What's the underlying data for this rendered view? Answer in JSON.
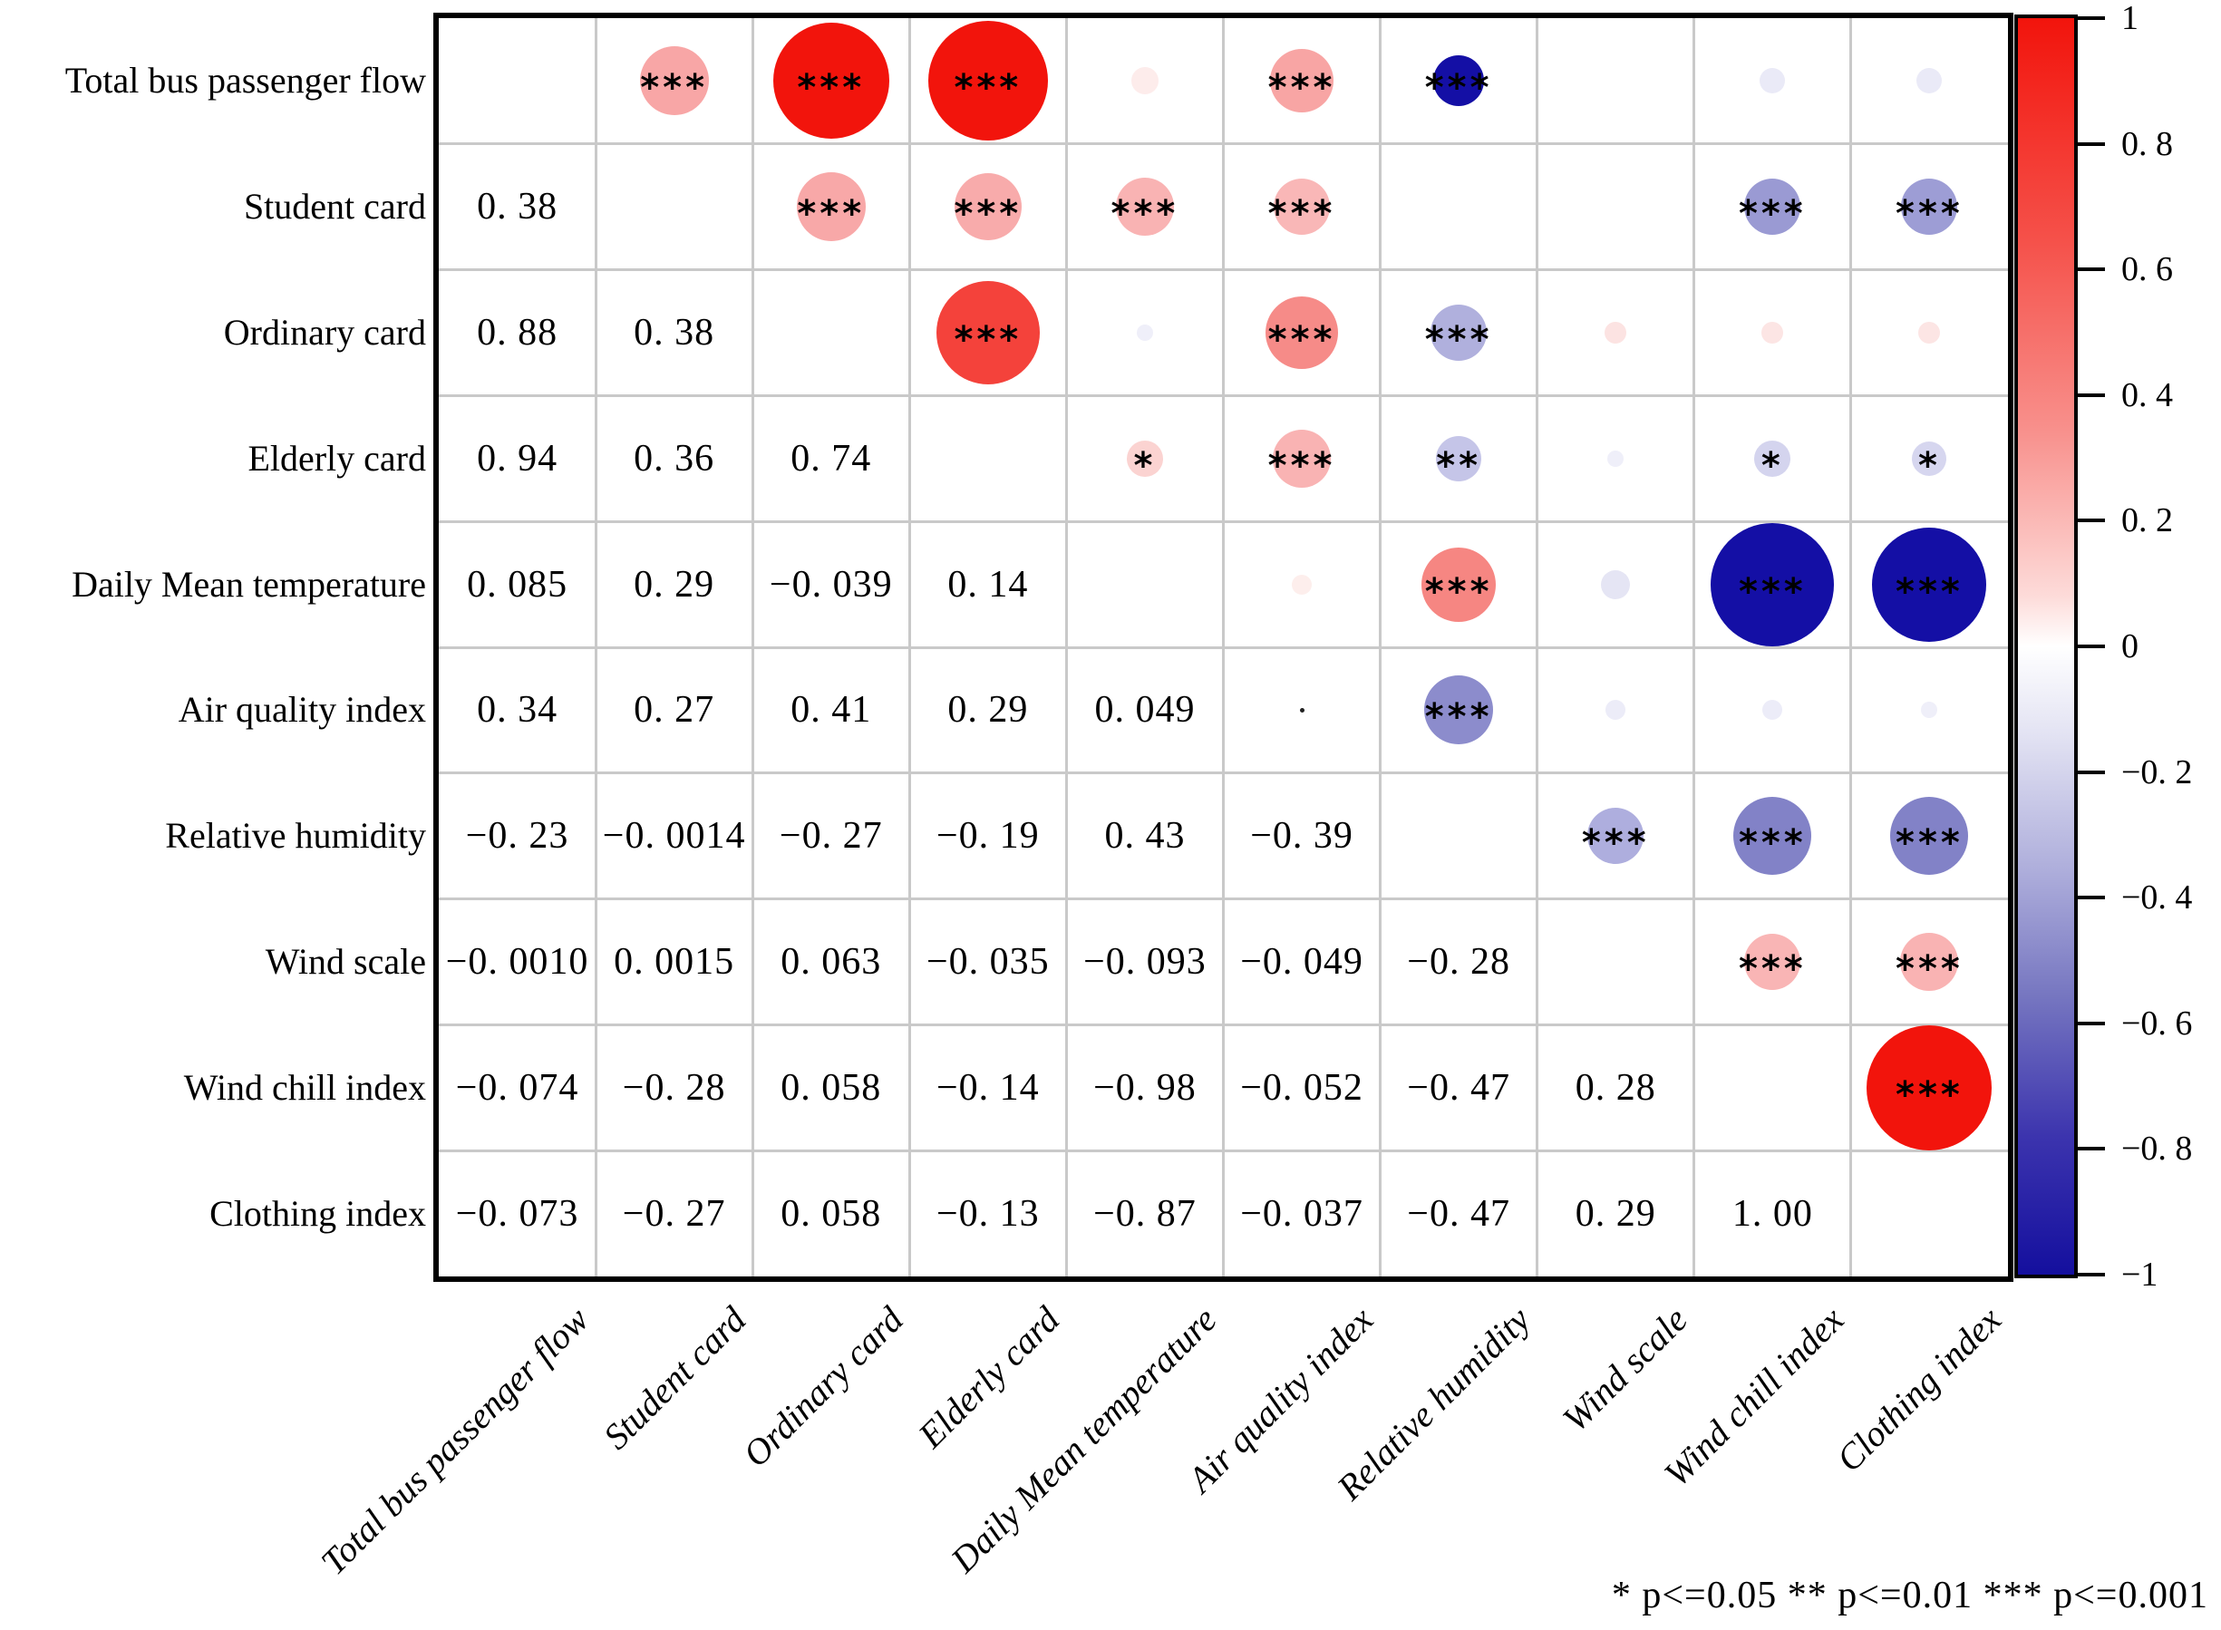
{
  "chart_data": {
    "type": "heatmap",
    "subtype": "correlation-matrix",
    "grid": true,
    "legend_position": "right",
    "variables": [
      "Total bus passenger flow",
      "Student card",
      "Ordinary card",
      "Elderly card",
      "Daily Mean temperature",
      "Air quality index",
      "Relative humidity",
      "Wind scale",
      "Wind chill index",
      "Clothing index"
    ],
    "lower_triangle_values": {
      "2": [
        "0. 38"
      ],
      "3": [
        "0. 88",
        "0. 38"
      ],
      "4": [
        "0. 94",
        "0. 36",
        "0. 74"
      ],
      "5": [
        "0. 085",
        "0. 29",
        "−0. 039",
        "0. 14"
      ],
      "6": [
        "0. 34",
        "0. 27",
        "0. 41",
        "0. 29",
        "0. 049"
      ],
      "7": [
        "−0. 23",
        "−0. 0014",
        "−0. 27",
        "−0. 19",
        "0. 43",
        "−0. 39"
      ],
      "8": [
        "−0. 0010",
        "0. 0015",
        "0. 063",
        "−0. 035",
        "−0. 093",
        "−0. 049",
        "−0. 28"
      ],
      "9": [
        "−0. 074",
        "−0. 28",
        "0. 058",
        "−0. 14",
        "−0. 98",
        "−0. 052",
        "−0. 47",
        "0. 28"
      ],
      "10": [
        "−0. 073",
        "−0. 27",
        "0. 058",
        "−0. 13",
        "−0. 87",
        "−0. 037",
        "−0. 47",
        "0. 29",
        "1. 00"
      ]
    },
    "circles": [
      {
        "row": 1,
        "col": 2,
        "r": 0.38,
        "color": "#f8a6a6",
        "stars": "***"
      },
      {
        "row": 1,
        "col": 3,
        "r": 0.88,
        "color": "#f2140c",
        "stars": "***"
      },
      {
        "row": 1,
        "col": 4,
        "r": 0.94,
        "color": "#f2140c",
        "stars": "***"
      },
      {
        "row": 1,
        "col": 5,
        "r": 0.085,
        "color": "#fdeceb",
        "stars": ""
      },
      {
        "row": 1,
        "col": 6,
        "r": 0.34,
        "color": "#f8a5a4",
        "stars": "***"
      },
      {
        "row": 1,
        "col": 7,
        "r": -0.23,
        "color": "#140fa5",
        "stars": "***"
      },
      {
        "row": 1,
        "col": 9,
        "r": -0.074,
        "color": "#eaeaf7",
        "stars": ""
      },
      {
        "row": 1,
        "col": 10,
        "r": -0.073,
        "color": "#eaeaf7",
        "stars": ""
      },
      {
        "row": 2,
        "col": 3,
        "r": 0.38,
        "color": "#f8a8a8",
        "stars": "***"
      },
      {
        "row": 2,
        "col": 4,
        "r": 0.36,
        "color": "#f8abab",
        "stars": "***"
      },
      {
        "row": 2,
        "col": 5,
        "r": 0.29,
        "color": "#f9b3b3",
        "stars": "***"
      },
      {
        "row": 2,
        "col": 6,
        "r": 0.27,
        "color": "#f9b7b7",
        "stars": "***"
      },
      {
        "row": 2,
        "col": 9,
        "r": -0.28,
        "color": "#9a9ad3",
        "stars": "***"
      },
      {
        "row": 2,
        "col": 10,
        "r": -0.27,
        "color": "#9d9dd5",
        "stars": "***"
      },
      {
        "row": 3,
        "col": 4,
        "r": 0.74,
        "color": "#f4423b",
        "stars": "***"
      },
      {
        "row": 3,
        "col": 5,
        "r": -0.039,
        "color": "#efeff9",
        "stars": ""
      },
      {
        "row": 3,
        "col": 6,
        "r": 0.41,
        "color": "#f68b88",
        "stars": "***"
      },
      {
        "row": 3,
        "col": 7,
        "r": -0.27,
        "color": "#b0b0dd",
        "stars": "***"
      },
      {
        "row": 3,
        "col": 8,
        "r": 0.063,
        "color": "#fce3e2",
        "stars": ""
      },
      {
        "row": 3,
        "col": 9,
        "r": 0.058,
        "color": "#fce5e4",
        "stars": ""
      },
      {
        "row": 3,
        "col": 10,
        "r": 0.058,
        "color": "#fce5e4",
        "stars": ""
      },
      {
        "row": 4,
        "col": 5,
        "r": 0.14,
        "color": "#fbd3d1",
        "stars": "*"
      },
      {
        "row": 4,
        "col": 6,
        "r": 0.29,
        "color": "#f9b3b3",
        "stars": "***"
      },
      {
        "row": 4,
        "col": 7,
        "r": -0.19,
        "color": "#c5c5e8",
        "stars": "**"
      },
      {
        "row": 4,
        "col": 8,
        "r": -0.035,
        "color": "#efeff9",
        "stars": ""
      },
      {
        "row": 4,
        "col": 9,
        "r": -0.14,
        "color": "#d4d4ee",
        "stars": "*"
      },
      {
        "row": 4,
        "col": 10,
        "r": -0.13,
        "color": "#d6d6ef",
        "stars": "*"
      },
      {
        "row": 5,
        "col": 6,
        "r": 0.049,
        "color": "#fdeeec",
        "stars": ""
      },
      {
        "row": 5,
        "col": 7,
        "r": 0.43,
        "color": "#f68682",
        "stars": "***"
      },
      {
        "row": 5,
        "col": 8,
        "r": -0.093,
        "color": "#e5e5f4",
        "stars": ""
      },
      {
        "row": 5,
        "col": 9,
        "r": -0.98,
        "color": "#140fa5",
        "stars": "***"
      },
      {
        "row": 5,
        "col": 10,
        "r": -0.87,
        "color": "#140fa5",
        "stars": "***"
      },
      {
        "row": 6,
        "col": 7,
        "r": -0.39,
        "color": "#8c8ccc",
        "stars": "***"
      },
      {
        "row": 6,
        "col": 8,
        "r": -0.049,
        "color": "#ececf8",
        "stars": ""
      },
      {
        "row": 6,
        "col": 9,
        "r": -0.052,
        "color": "#ececf8",
        "stars": ""
      },
      {
        "row": 6,
        "col": 10,
        "r": -0.037,
        "color": "#efeff9",
        "stars": ""
      },
      {
        "row": 7,
        "col": 8,
        "r": -0.28,
        "color": "#aeaede",
        "stars": "***"
      },
      {
        "row": 7,
        "col": 9,
        "r": -0.47,
        "color": "#8282c7",
        "stars": "***"
      },
      {
        "row": 7,
        "col": 10,
        "r": -0.47,
        "color": "#8282c7",
        "stars": "***"
      },
      {
        "row": 8,
        "col": 9,
        "r": 0.28,
        "color": "#f9b5b5",
        "stars": "***"
      },
      {
        "row": 8,
        "col": 10,
        "r": 0.29,
        "color": "#f9b3b3",
        "stars": "***"
      },
      {
        "row": 9,
        "col": 10,
        "r": 1.0,
        "color": "#f2140c",
        "stars": "***"
      }
    ],
    "diagonal_dot": {
      "row": 6,
      "col": 6
    },
    "colorbar": {
      "range": [
        -1,
        1
      ],
      "max_color": "#f2140c",
      "mid_color": "#ffffff",
      "min_color": "#140f9e",
      "ticks": [
        {
          "value": 1,
          "label": "1"
        },
        {
          "value": 0.8,
          "label": "0. 8"
        },
        {
          "value": 0.6,
          "label": "0. 6"
        },
        {
          "value": 0.4,
          "label": "0. 4"
        },
        {
          "value": 0.2,
          "label": "0. 2"
        },
        {
          "value": 0,
          "label": "0"
        },
        {
          "value": -0.2,
          "label": "−0. 2"
        },
        {
          "value": -0.4,
          "label": "−0. 4"
        },
        {
          "value": -0.6,
          "label": "−0. 6"
        },
        {
          "value": -0.8,
          "label": "−0. 8"
        },
        {
          "value": -1,
          "label": "−1"
        }
      ]
    },
    "significance_legend": "* p<=0.05  ** p<=0.01  *** p<=0.001"
  }
}
